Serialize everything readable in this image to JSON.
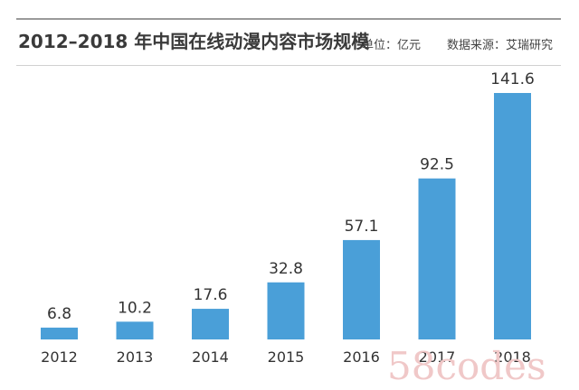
{
  "header": {
    "title": "2012–2018 年中国在线动漫内容市场规模",
    "unit": "单位：亿元",
    "source": "数据来源：艾瑞研究"
  },
  "watermark": "58codes",
  "chart_data": {
    "type": "bar",
    "title": "2012–2018 年中国在线动漫内容市场规模",
    "categories": [
      "2012",
      "2013",
      "2014",
      "2015",
      "2016",
      "2017",
      "2018"
    ],
    "values": [
      6.8,
      10.2,
      17.6,
      32.8,
      57.1,
      92.5,
      141.6
    ],
    "value_labels": [
      "6.8",
      "10.2",
      "17.6",
      "32.8",
      "57.1",
      "92.5",
      "141.6"
    ],
    "xlabel": "",
    "ylabel": "",
    "ylim": [
      0,
      141.6
    ],
    "grid": false,
    "legend": "none",
    "bar_color": "#4a9fd8"
  }
}
